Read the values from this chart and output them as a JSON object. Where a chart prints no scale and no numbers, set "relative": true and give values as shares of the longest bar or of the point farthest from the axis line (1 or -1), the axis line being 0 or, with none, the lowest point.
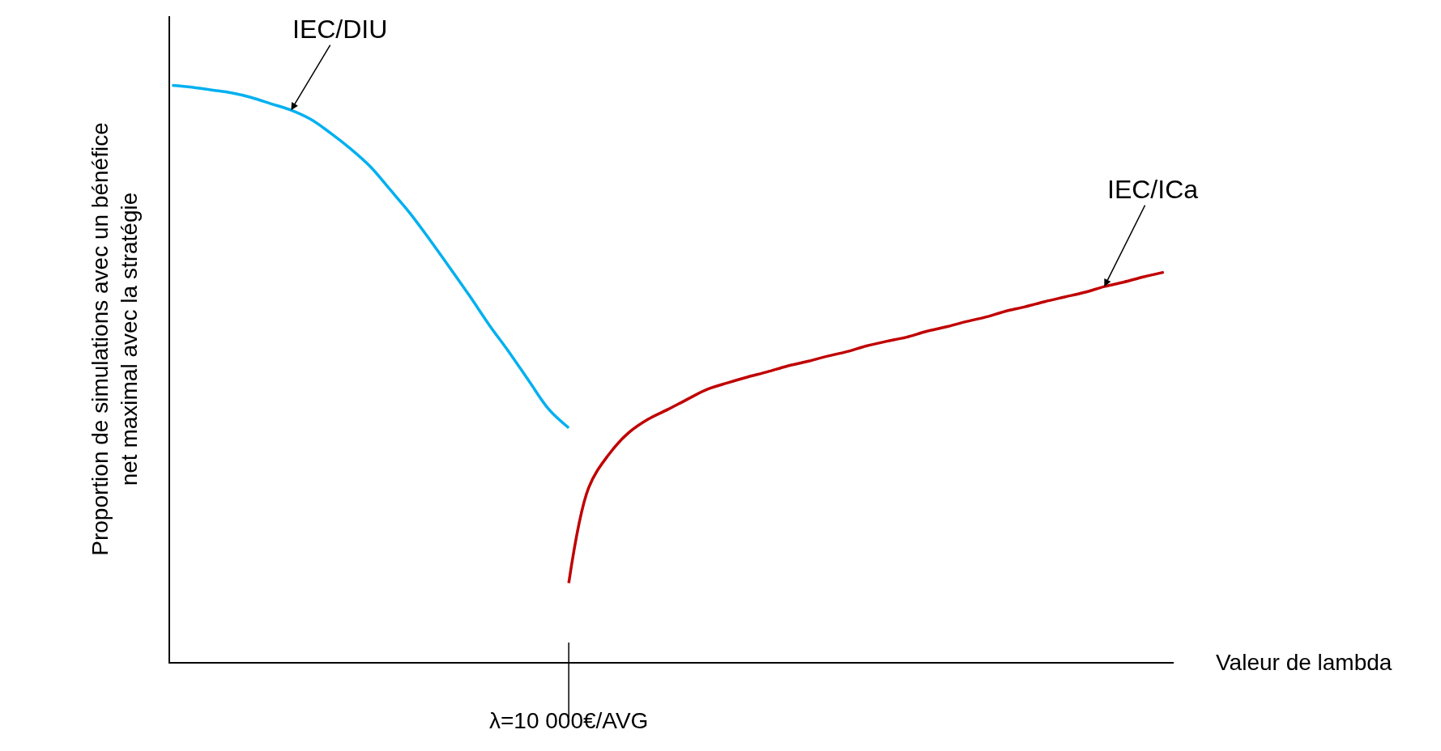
{
  "chart_data": {
    "type": "line",
    "relative": true,
    "xlabel": "Valeur de lambda",
    "ylabel": "Proportion de simulations avec un bénéfice\nnet maximal avec la stratégie",
    "categories": [
      null,
      null,
      null,
      null,
      null,
      null,
      null,
      null,
      null,
      null,
      null,
      null,
      null,
      null,
      null,
      null,
      null,
      null,
      null,
      null,
      null,
      null,
      null,
      null,
      null,
      null,
      null,
      null,
      null,
      null,
      null,
      null,
      null,
      null,
      null,
      null,
      null,
      null,
      null,
      null,
      null,
      null,
      null,
      null,
      null,
      null,
      null,
      null,
      null,
      null,
      null
    ],
    "series": [
      {
        "name": "IEC/DIU",
        "color": "#00b0f0",
        "values": [
          1.0,
          0.997,
          0.992,
          0.987,
          0.979,
          0.968,
          0.957,
          0.941,
          0.917,
          0.89,
          0.859,
          0.819,
          0.778,
          0.732,
          0.684,
          0.635,
          0.584,
          0.537,
          0.487,
          0.438,
          0.406,
          null,
          null,
          null,
          null,
          null,
          null,
          null,
          null,
          null,
          null,
          null,
          null,
          null,
          null,
          null,
          null,
          null,
          null,
          null,
          null,
          null,
          null,
          null,
          null,
          null,
          null,
          null,
          null,
          null,
          null
        ]
      },
      {
        "name": "IEC/ICa",
        "color": "#c00000",
        "values": [
          null,
          null,
          null,
          null,
          null,
          null,
          null,
          null,
          null,
          null,
          null,
          null,
          null,
          null,
          null,
          null,
          null,
          null,
          null,
          null,
          0.137,
          0.302,
          0.359,
          0.397,
          0.421,
          0.438,
          0.456,
          0.473,
          0.484,
          0.494,
          0.503,
          0.513,
          0.521,
          0.53,
          0.538,
          0.548,
          0.556,
          0.563,
          0.573,
          0.581,
          0.59,
          0.598,
          0.608,
          0.616,
          0.625,
          0.633,
          0.641,
          0.651,
          0.659,
          0.668,
          0.676
        ]
      }
    ],
    "annotations": [
      "λ=10 000€/AVG"
    ],
    "legend": false
  }
}
